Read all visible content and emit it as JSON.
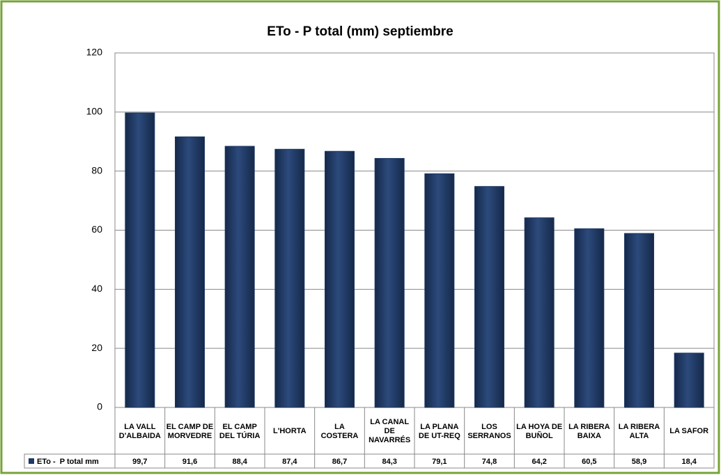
{
  "chart_data": {
    "type": "bar",
    "title": "ETo - P total (mm) septiembre",
    "categories": [
      "LA VALL D'ALBAIDA",
      "EL CAMP DE MORVEDRE",
      "EL CAMP DEL TÚRIA",
      "L'HORTA",
      "LA COSTERA",
      "LA CANAL DE NAVARRÉS",
      "LA PLANA DE UT-REQ",
      "LOS SERRANOS",
      "LA HOYA DE BUÑOL",
      "LA RIBERA BAIXA",
      "LA RIBERA ALTA",
      "LA SAFOR"
    ],
    "series": [
      {
        "name": "ETo -  P total mm",
        "color": "#1f3864",
        "values": [
          99.7,
          91.6,
          88.4,
          87.4,
          86.7,
          84.3,
          79.1,
          74.8,
          64.2,
          60.5,
          58.9,
          18.4
        ],
        "value_labels": [
          "99,7",
          "91,6",
          "88,4",
          "87,4",
          "86,7",
          "84,3",
          "79,1",
          "74,8",
          "64,2",
          "60,5",
          "58,9",
          "18,4"
        ]
      }
    ],
    "ylim": [
      0,
      120
    ],
    "yticks": [
      0,
      20,
      40,
      60,
      80,
      100,
      120
    ],
    "grid": true
  }
}
